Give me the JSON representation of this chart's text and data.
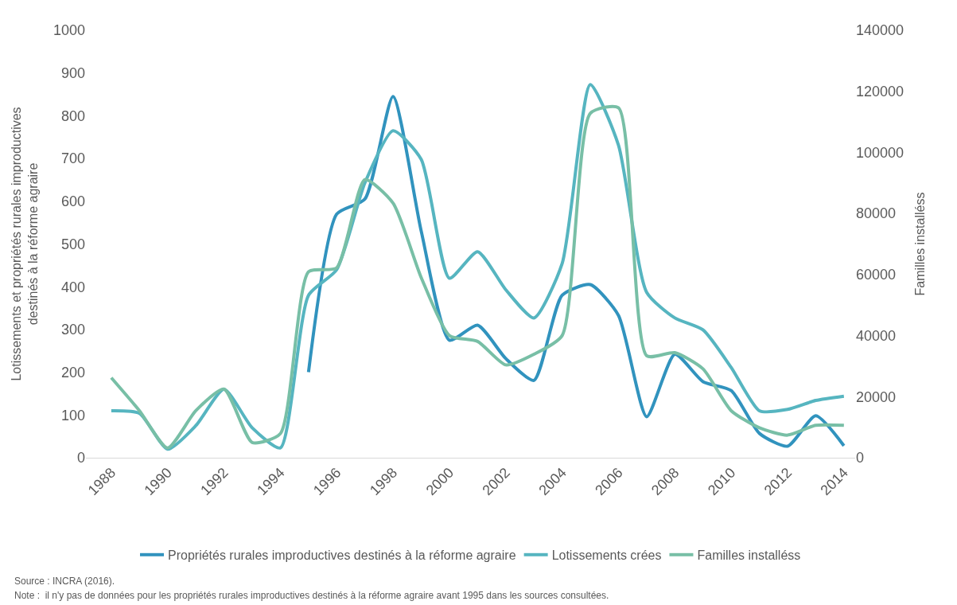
{
  "chart_data": {
    "type": "line",
    "ylabel": "Lotissements et propriétés rurales improductives destinés à la réforme agraire",
    "y2label": "Familles installéss",
    "x": [
      1988,
      1989,
      1990,
      1991,
      1992,
      1993,
      1994,
      1995,
      1996,
      1997,
      1998,
      1999,
      2000,
      2001,
      2002,
      2003,
      2004,
      2005,
      2006,
      2007,
      2008,
      2009,
      2010,
      2011,
      2012,
      2013,
      2014
    ],
    "series": [
      {
        "name": "Propriétés rurales improductives destinés à la réforme agraire",
        "color": "#3193be",
        "values": [
          null,
          null,
          null,
          null,
          null,
          null,
          null,
          200,
          570,
          605,
          845,
          530,
          275,
          310,
          232,
          181,
          380,
          405,
          333,
          96,
          242,
          178,
          157,
          57,
          27,
          98,
          28
        ]
      },
      {
        "name": "Lotissements crées",
        "color": "#56b5c0",
        "values": [
          110,
          104,
          20,
          75,
          160,
          70,
          23,
          380,
          440,
          643,
          765,
          698,
          420,
          482,
          393,
          327,
          454,
          873,
          731,
          387,
          327,
          299,
          211,
          110,
          113,
          134,
          144
        ]
      },
      {
        "name": "Familles installéss",
        "color": "#78bfa6",
        "axis": "y2",
        "values": [
          26200,
          15400,
          3200,
          15400,
          22500,
          5000,
          7900,
          60900,
          62200,
          91100,
          83400,
          59000,
          40000,
          38100,
          30400,
          33900,
          40000,
          112800,
          114600,
          33400,
          34400,
          29100,
          15400,
          9800,
          7400,
          10600,
          10600
        ]
      }
    ],
    "xlim": [
      1987.1,
      2014.4
    ],
    "xticks": [
      1988,
      1990,
      1992,
      1994,
      1996,
      1998,
      2000,
      2002,
      2004,
      2006,
      2008,
      2010,
      2012,
      2014
    ],
    "ylim": [
      0,
      1000
    ],
    "yticks": [
      0,
      100,
      200,
      300,
      400,
      500,
      600,
      700,
      800,
      900,
      1000
    ],
    "y2lim": [
      0,
      140000
    ],
    "y2ticks": [
      0,
      20000,
      40000,
      60000,
      80000,
      100000,
      120000,
      140000
    ],
    "legend": "bottom",
    "marker": "none",
    "line_style": "solid",
    "annotations": [
      "Source : INCRA (2016).",
      "Note :  il n'y pas de données pour les propriétés rurales improductives destinés à la réforme agraire avant 1995 dans les sources consultées."
    ]
  }
}
